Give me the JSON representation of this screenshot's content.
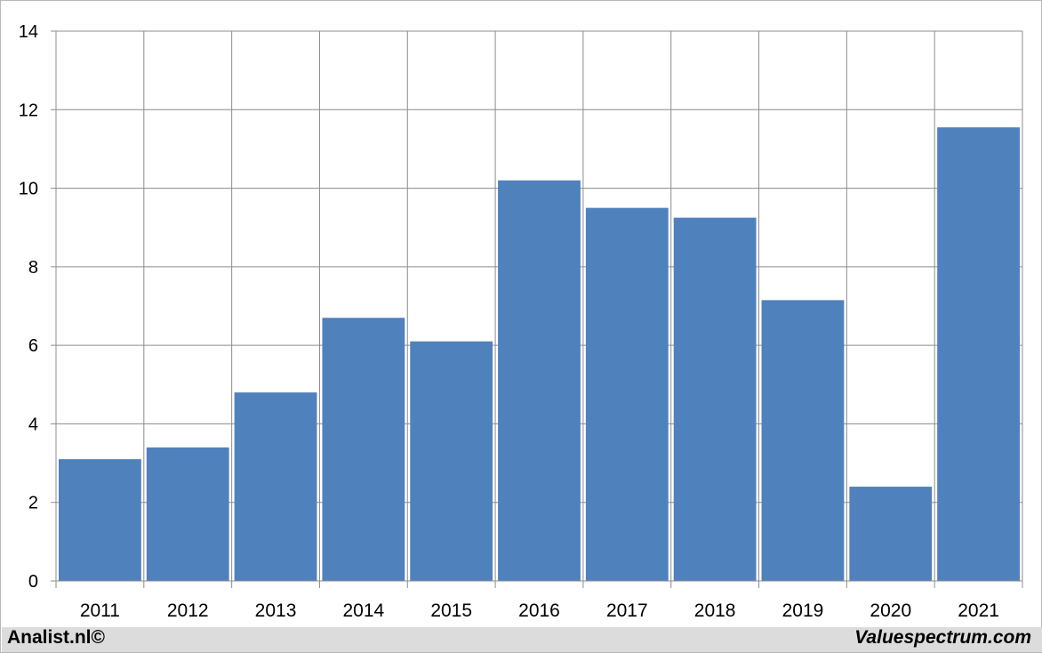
{
  "chart_data": {
    "type": "bar",
    "categories": [
      "2011",
      "2012",
      "2013",
      "2014",
      "2015",
      "2016",
      "2017",
      "2018",
      "2019",
      "2020",
      "2021"
    ],
    "values": [
      3.1,
      3.4,
      4.8,
      6.7,
      6.1,
      10.2,
      9.5,
      9.25,
      7.15,
      2.4,
      11.55
    ],
    "title": "",
    "xlabel": "",
    "ylabel": "",
    "ylim": [
      0,
      14
    ],
    "yticks": [
      "0",
      "2",
      "4",
      "6",
      "8",
      "10",
      "12",
      "14"
    ],
    "grid": true,
    "bar_color": "#4f81bd"
  },
  "footer": {
    "left": "Analist.nl©",
    "right": "Valuespectrum.com"
  }
}
